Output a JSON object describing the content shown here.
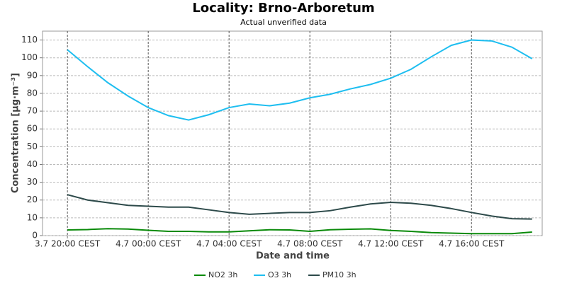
{
  "chart_data": {
    "type": "line",
    "title": "Locality: Brno-Arboretum",
    "subtitle": "Actual unverified data",
    "x_label": "Date and time",
    "y_label": "Concentration [µg·m⁻³]",
    "x": [
      "3.7 20:00 CEST",
      "3.7 21:00 CEST",
      "3.7 22:00 CEST",
      "3.7 23:00 CEST",
      "4.7 00:00 CEST",
      "4.7 01:00 CEST",
      "4.7 02:00 CEST",
      "4.7 03:00 CEST",
      "4.7 04:00 CEST",
      "4.7 05:00 CEST",
      "4.7 06:00 CEST",
      "4.7 07:00 CEST",
      "4.7 08:00 CEST",
      "4.7 09:00 CEST",
      "4.7 10:00 CEST",
      "4.7 11:00 CEST",
      "4.7 12:00 CEST",
      "4.7 13:00 CEST",
      "4.7 14:00 CEST",
      "4.7 15:00 CEST",
      "4.7 16:00 CEST",
      "4.7 17:00 CEST",
      "4.7 18:00 CEST",
      "4.7 19:00 CEST"
    ],
    "xlim": [
      "3.7 18:46 CEST",
      "4.7 19:30 CEST"
    ],
    "xticks": [
      "3.7 20:00 CEST",
      "4.7 00:00 CEST",
      "4.7 04:00 CEST",
      "4.7 08:00 CEST",
      "4.7 12:00 CEST",
      "4.7 16:00 CEST"
    ],
    "ylim": [
      0,
      115
    ],
    "yticks": [
      0,
      10,
      20,
      30,
      40,
      50,
      60,
      70,
      80,
      90,
      100,
      110
    ],
    "grid": true,
    "legend": "bottom",
    "series": [
      {
        "name": "NO2 3h",
        "color": "#0a8a0a",
        "values": [
          3.2,
          3.4,
          3.9,
          3.7,
          3.0,
          2.4,
          2.4,
          2.1,
          2.1,
          2.7,
          3.3,
          3.2,
          2.4,
          3.3,
          3.6,
          3.8,
          2.9,
          2.4,
          1.7,
          1.4,
          1.1,
          1.1,
          1.1,
          2.0
        ]
      },
      {
        "name": "O3 3h",
        "color": "#1ebef0",
        "values": [
          104.5,
          95,
          86,
          78.5,
          72,
          67.5,
          65,
          68,
          72,
          74,
          73,
          74.5,
          77.5,
          79.5,
          82.5,
          85,
          88.5,
          93.5,
          100.5,
          107,
          110,
          109.5,
          106,
          99.5
        ]
      },
      {
        "name": "PM10 3h",
        "color": "#2d4a4a",
        "values": [
          23,
          20,
          18.5,
          17,
          16.5,
          16,
          16,
          14.5,
          13,
          12,
          12.5,
          13,
          13,
          14,
          16,
          17.8,
          18.7,
          18.2,
          17,
          15.2,
          13,
          11,
          9.5,
          9.3
        ]
      }
    ]
  }
}
